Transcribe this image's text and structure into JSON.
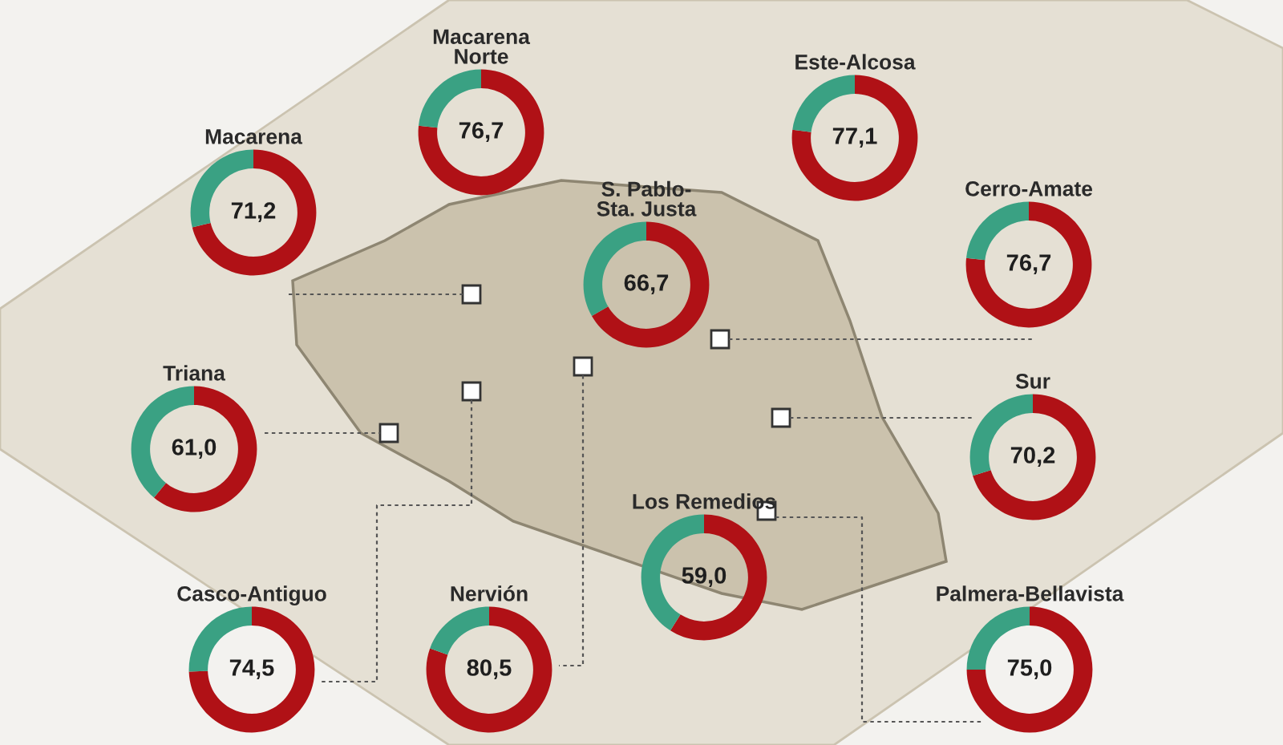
{
  "chart_data": [
    {
      "type": "donut",
      "title": "Macarena\nNorte",
      "categories": [
        null,
        null
      ],
      "values": [
        76.7,
        23.3
      ],
      "colors": [
        "#b01116",
        "#3aa183"
      ],
      "annotations": [
        "76,7"
      ]
    },
    {
      "type": "donut",
      "title": "Este-Alcosa",
      "categories": [
        null,
        null
      ],
      "values": [
        77.1,
        22.9
      ],
      "colors": [
        "#b01116",
        "#3aa183"
      ],
      "annotations": [
        "77,1"
      ]
    },
    {
      "type": "donut",
      "title": "Macarena",
      "categories": [
        null,
        null
      ],
      "values": [
        71.2,
        28.8
      ],
      "colors": [
        "#b01116",
        "#3aa183"
      ],
      "annotations": [
        "71,2"
      ]
    },
    {
      "type": "donut",
      "title": "S. Pablo-\nSta. Justa",
      "categories": [
        null,
        null
      ],
      "values": [
        66.7,
        33.3
      ],
      "colors": [
        "#b01116",
        "#3aa183"
      ],
      "annotations": [
        "66,7"
      ]
    },
    {
      "type": "donut",
      "title": "Cerro-Amate",
      "categories": [
        null,
        null
      ],
      "values": [
        76.7,
        23.3
      ],
      "colors": [
        "#b01116",
        "#3aa183"
      ],
      "annotations": [
        "76,7"
      ]
    },
    {
      "type": "donut",
      "title": "Triana",
      "categories": [
        null,
        null
      ],
      "values": [
        61.0,
        39.0
      ],
      "colors": [
        "#b01116",
        "#3aa183"
      ],
      "annotations": [
        "61,0"
      ]
    },
    {
      "type": "donut",
      "title": "Sur",
      "categories": [
        null,
        null
      ],
      "values": [
        70.2,
        29.8
      ],
      "colors": [
        "#b01116",
        "#3aa183"
      ],
      "annotations": [
        "70,2"
      ]
    },
    {
      "type": "donut",
      "title": "Los Remedios",
      "categories": [
        null,
        null
      ],
      "values": [
        59.0,
        41.0
      ],
      "colors": [
        "#b01116",
        "#3aa183"
      ],
      "annotations": [
        "59,0"
      ]
    },
    {
      "type": "donut",
      "title": "Casco-Antiguo",
      "categories": [
        null,
        null
      ],
      "values": [
        74.5,
        25.5
      ],
      "colors": [
        "#b01116",
        "#3aa183"
      ],
      "annotations": [
        "74,5"
      ]
    },
    {
      "type": "donut",
      "title": "Nervión",
      "categories": [
        null,
        null
      ],
      "values": [
        80.5,
        19.5
      ],
      "colors": [
        "#b01116",
        "#3aa183"
      ],
      "annotations": [
        "80,5"
      ]
    },
    {
      "type": "donut",
      "title": "Palmera-Bellavista",
      "categories": [
        null,
        null
      ],
      "values": [
        75.0,
        25.0
      ],
      "colors": [
        "#b01116",
        "#3aa183"
      ],
      "annotations": [
        "75,0"
      ]
    }
  ]
}
